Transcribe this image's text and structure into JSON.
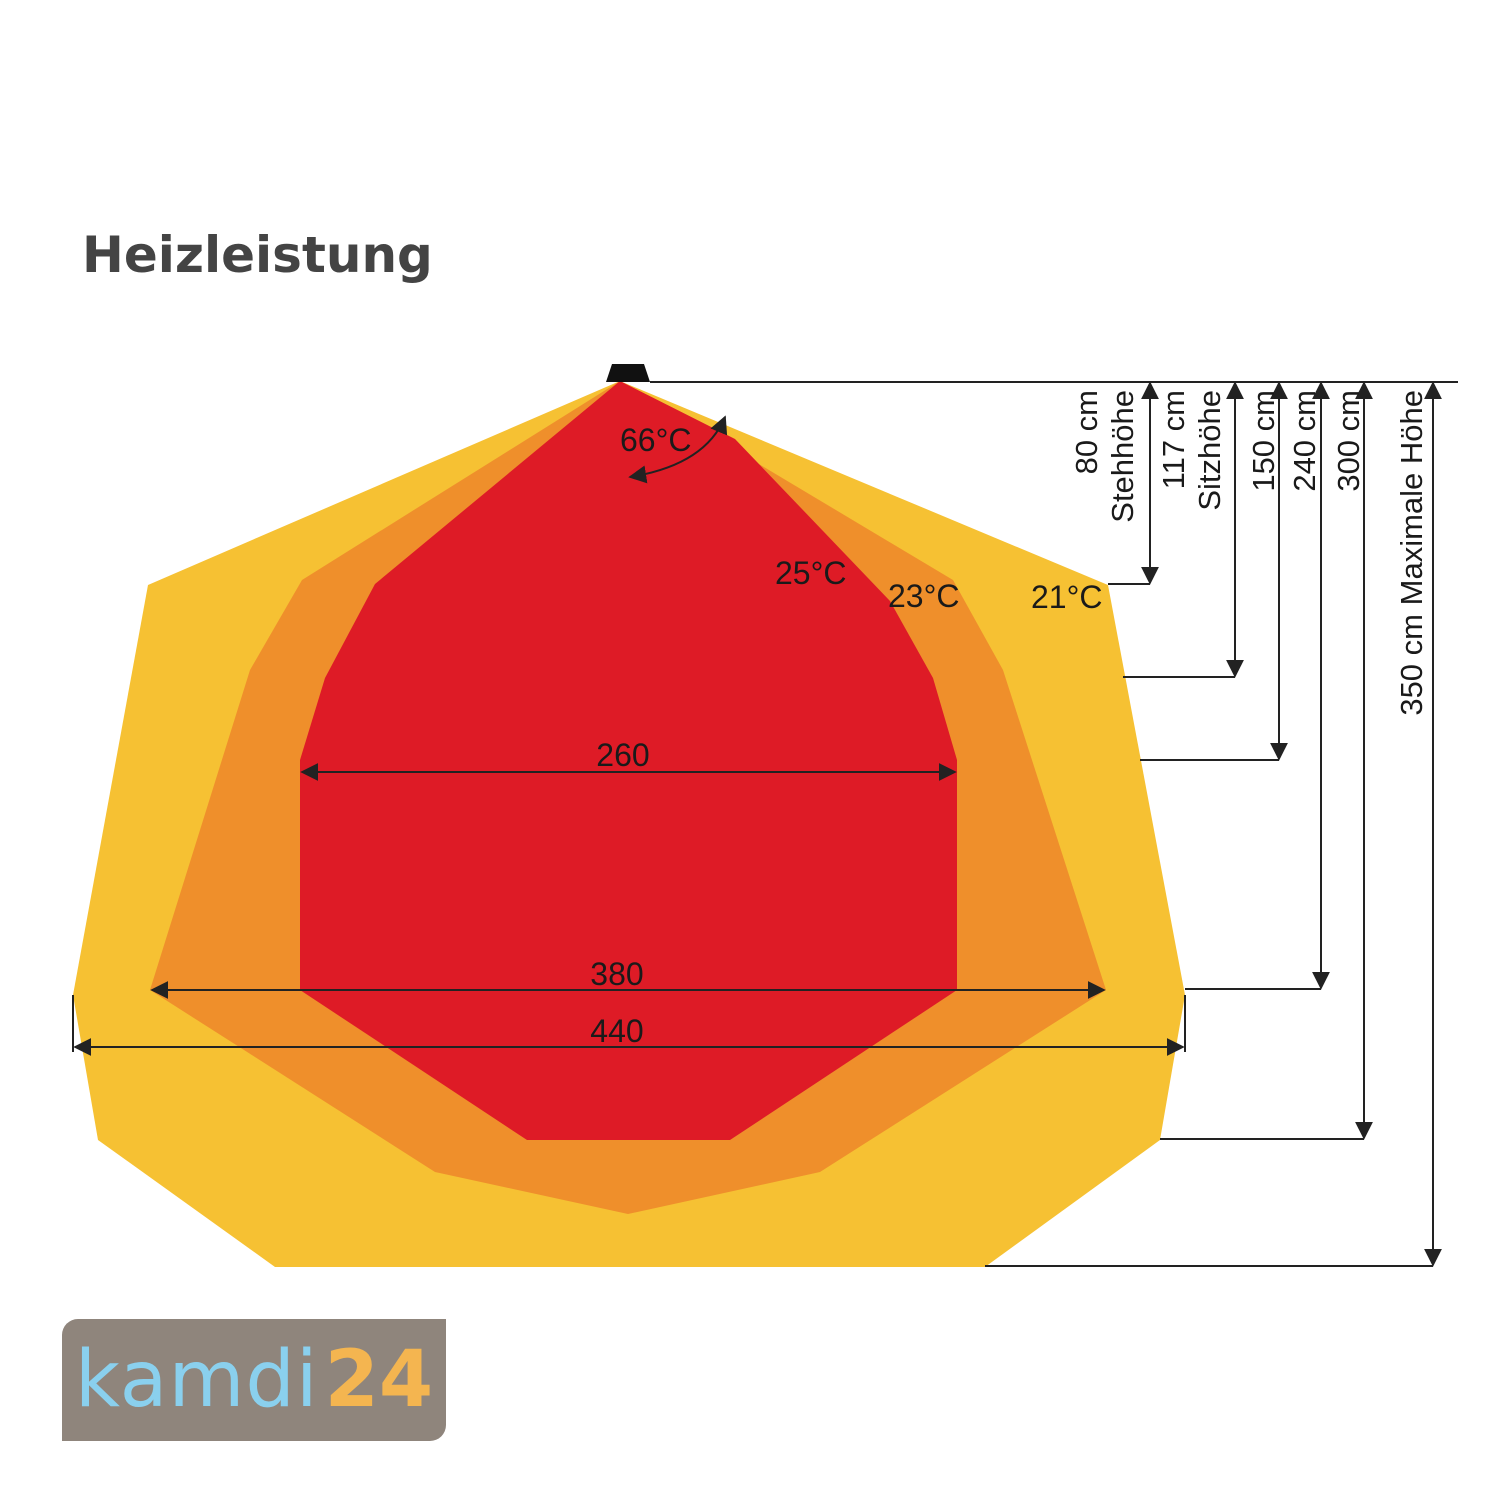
{
  "title": "Heizleistung",
  "colors": {
    "zone_21": "#f6c133",
    "zone_23": "#ef8f2b",
    "zone_25": "#de1b26",
    "heater": "#111111",
    "lines": "#222222",
    "logo_bg": "#8f857c",
    "logo_word": "#8ad0ee",
    "logo_number": "#f4b550"
  },
  "heater": {
    "beam_angle": "66°C"
  },
  "zones": [
    {
      "temperature": "21°C",
      "width": "440"
    },
    {
      "temperature": "23°C",
      "width": "380"
    },
    {
      "temperature": "25°C",
      "width": "260"
    }
  ],
  "heights": [
    {
      "value": "80 cm",
      "label": "Stehhöhe"
    },
    {
      "value": "117 cm",
      "label": "Sitzhöhe"
    },
    {
      "value": "150 cm"
    },
    {
      "value": "240 cm"
    },
    {
      "value": "300 cm"
    },
    {
      "value": "350 cm",
      "label": "Maximale Höhe"
    }
  ],
  "logo": {
    "word": "kamdi",
    "number": "24"
  }
}
